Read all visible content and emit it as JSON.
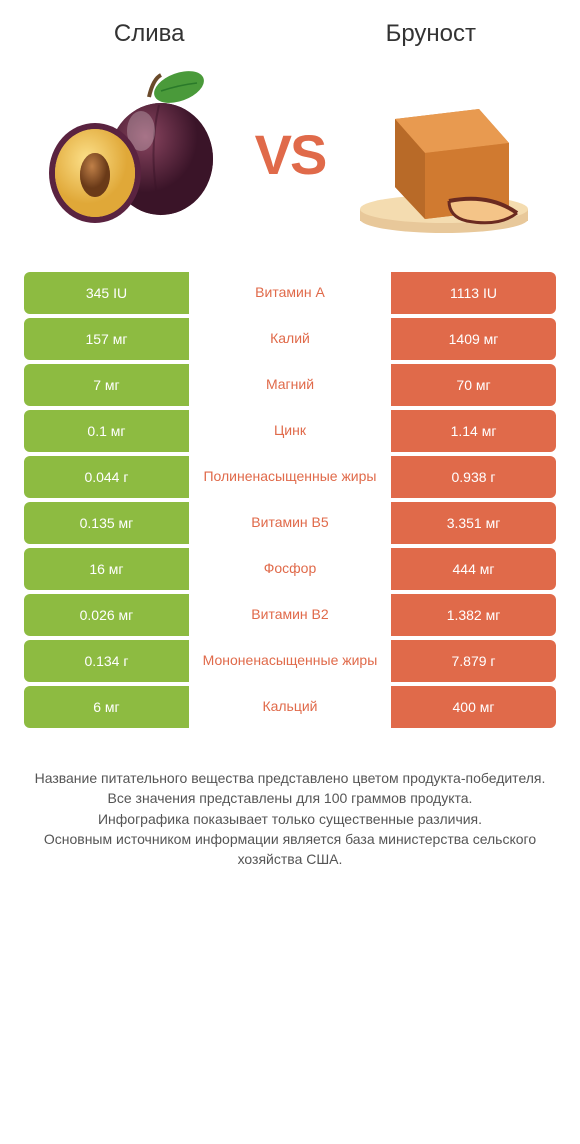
{
  "header": {
    "left_title": "Слива",
    "right_title": "Бруност",
    "vs_text": "VS"
  },
  "colors": {
    "left_bar": "#8dbb41",
    "right_bar": "#e06a4a",
    "mid_text_when_right_wins": "#e06a4a",
    "mid_text_when_left_wins": "#8dbb41",
    "background": "#ffffff",
    "title_text": "#333333",
    "footer_text": "#555555"
  },
  "rows": [
    {
      "left": "345 IU",
      "mid": "Витамин A",
      "right": "1113 IU",
      "winner": "right"
    },
    {
      "left": "157 мг",
      "mid": "Калий",
      "right": "1409 мг",
      "winner": "right"
    },
    {
      "left": "7 мг",
      "mid": "Магний",
      "right": "70 мг",
      "winner": "right"
    },
    {
      "left": "0.1 мг",
      "mid": "Цинк",
      "right": "1.14 мг",
      "winner": "right"
    },
    {
      "left": "0.044 г",
      "mid": "Полиненасыщенные жиры",
      "right": "0.938 г",
      "winner": "right"
    },
    {
      "left": "0.135 мг",
      "mid": "Витамин B5",
      "right": "3.351 мг",
      "winner": "right"
    },
    {
      "left": "16 мг",
      "mid": "Фосфор",
      "right": "444 мг",
      "winner": "right"
    },
    {
      "left": "0.026 мг",
      "mid": "Витамин B2",
      "right": "1.382 мг",
      "winner": "right"
    },
    {
      "left": "0.134 г",
      "mid": "Мононенасыщенные жиры",
      "right": "7.879 г",
      "winner": "right"
    },
    {
      "left": "6 мг",
      "mid": "Кальций",
      "right": "400 мг",
      "winner": "right"
    }
  ],
  "footer": {
    "line1": "Название питательного вещества представлено цветом продукта-победителя.",
    "line2": "Все значения представлены для 100 граммов продукта.",
    "line3": "Инфографика показывает только существенные различия.",
    "line4": "Основным источником информации является база министерства сельского хозяйства США."
  },
  "icons": {
    "left": "plum",
    "right": "brunost-cheese"
  }
}
